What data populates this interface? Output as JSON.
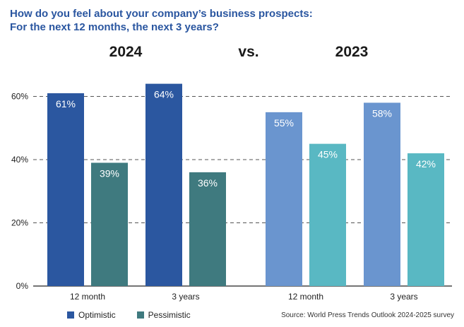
{
  "title_lines": [
    "How do you feel about your company’s business prospects:",
    "For the next 12 months, the next 3 years?"
  ],
  "headers": {
    "left_year": "2024",
    "vs": "vs.",
    "right_year": "2023"
  },
  "source": "Source: World Press Trends Outlook 2024-2025 survey",
  "legend": [
    {
      "label": "Optimistic",
      "color": "#2b57a0"
    },
    {
      "label": "Pessimistic",
      "color": "#3f7a7f"
    }
  ],
  "chart_data": {
    "type": "bar",
    "y_ticks": [
      "0%",
      "20%",
      "40%",
      "60%"
    ],
    "ylim": [
      0,
      70
    ],
    "groups": [
      {
        "year": "2024",
        "categories": [
          "12 month",
          "3 years"
        ],
        "series": [
          {
            "name": "Optimistic",
            "values": [
              61,
              64
            ],
            "labels": [
              "61%",
              "64%"
            ],
            "color": "#2b57a0"
          },
          {
            "name": "Pessimistic",
            "values": [
              39,
              36
            ],
            "labels": [
              "39%",
              "36%"
            ],
            "color": "#3f7a7f"
          }
        ]
      },
      {
        "year": "2023",
        "categories": [
          "12 month",
          "3 years"
        ],
        "series": [
          {
            "name": "Optimistic",
            "values": [
              55,
              58
            ],
            "labels": [
              "55%",
              "58%"
            ],
            "color": "#6a95cf"
          },
          {
            "name": "Pessimistic",
            "values": [
              45,
              42
            ],
            "labels": [
              "45%",
              "42%"
            ],
            "color": "#59b8c3"
          }
        ]
      }
    ]
  }
}
